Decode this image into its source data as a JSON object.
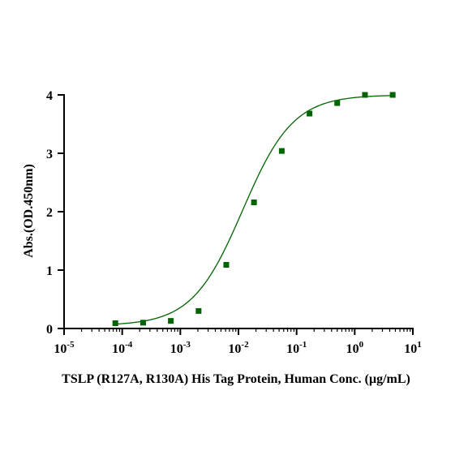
{
  "chart_data": {
    "type": "scatter",
    "xlabel": "TSLP (R127A, R130A) His Tag Protein, Human  Conc. (μg/mL)",
    "ylabel": "Abs.(OD.450nm)",
    "x_scale": "log",
    "xlim": [
      1e-05,
      10
    ],
    "ylim": [
      0,
      4
    ],
    "x_ticks": [
      {
        "value": 1e-05,
        "base": "10",
        "exp": "-5"
      },
      {
        "value": 0.0001,
        "base": "10",
        "exp": "-4"
      },
      {
        "value": 0.001,
        "base": "10",
        "exp": "-3"
      },
      {
        "value": 0.01,
        "base": "10",
        "exp": "-2"
      },
      {
        "value": 0.1,
        "base": "10",
        "exp": "-1"
      },
      {
        "value": 1,
        "base": "10",
        "exp": "0"
      },
      {
        "value": 10,
        "base": "10",
        "exp": "1"
      }
    ],
    "y_ticks": [
      {
        "value": 0,
        "label": "0"
      },
      {
        "value": 1,
        "label": "1"
      },
      {
        "value": 2,
        "label": "2"
      },
      {
        "value": 3,
        "label": "3"
      },
      {
        "value": 4,
        "label": "4"
      }
    ],
    "grid": false,
    "color": "#006400",
    "series": [
      {
        "marker": "square",
        "points": [
          {
            "x": 7.62e-05,
            "y": 0.09
          },
          {
            "x": 0.000229,
            "y": 0.1
          },
          {
            "x": 0.000686,
            "y": 0.13
          },
          {
            "x": 0.00206,
            "y": 0.3
          },
          {
            "x": 0.00617,
            "y": 1.09
          },
          {
            "x": 0.0185,
            "y": 2.16
          },
          {
            "x": 0.0556,
            "y": 3.04
          },
          {
            "x": 0.167,
            "y": 3.68
          },
          {
            "x": 0.5,
            "y": 3.86
          },
          {
            "x": 1.5,
            "y": 4.0
          },
          {
            "x": 4.5,
            "y": 4.0
          }
        ],
        "fit": {
          "model": "4PL",
          "bottom": 0.05,
          "top": 4.0,
          "ec50": 0.0118,
          "hill": 1.0
        }
      }
    ]
  }
}
